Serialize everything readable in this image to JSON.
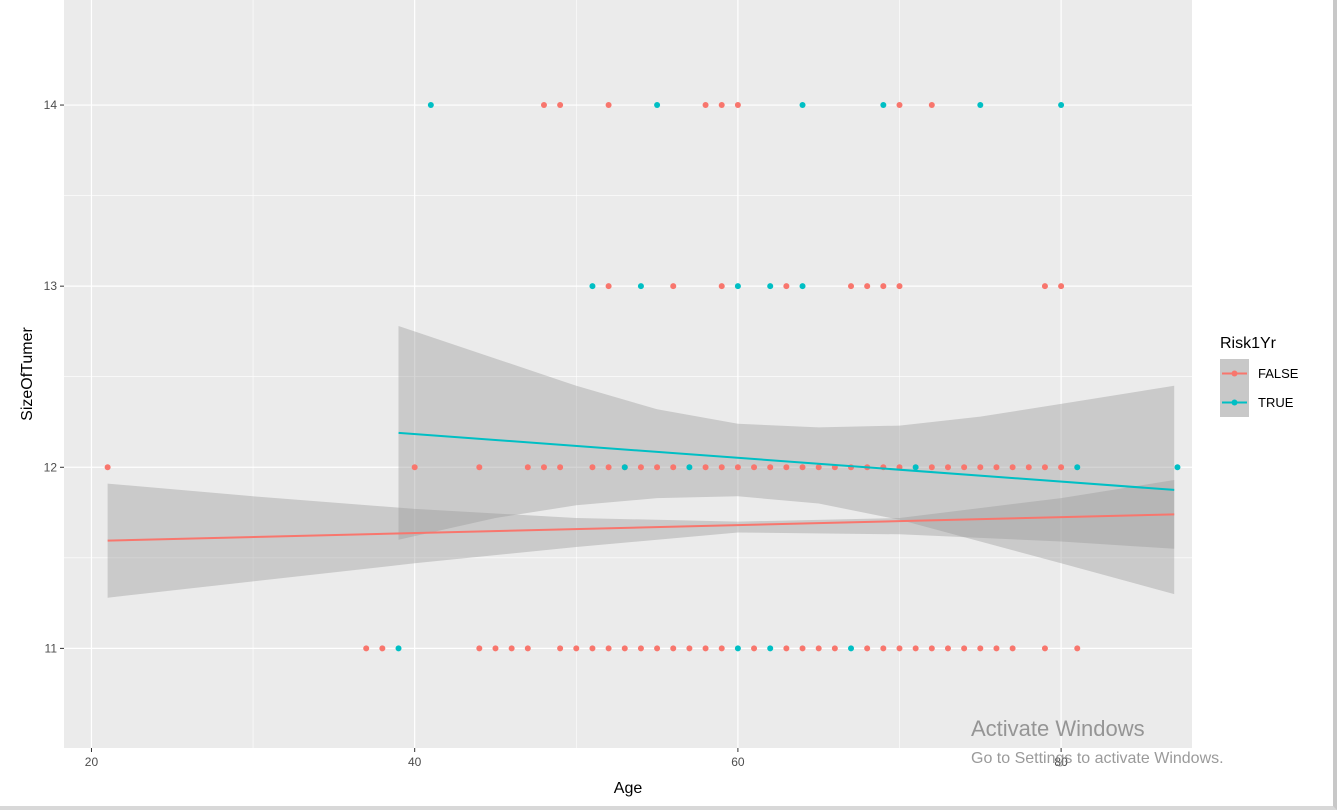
{
  "chart_data": {
    "type": "scatter",
    "xlabel": "Age",
    "ylabel": "SizeOfTumer",
    "xlim": [
      18.3,
      88.1
    ],
    "ylim": [
      10.45,
      14.58
    ],
    "x_ticks": [
      20,
      40,
      60,
      80
    ],
    "y_ticks": [
      11,
      12,
      13,
      14
    ],
    "grid": true,
    "legend": {
      "title": "Risk1Yr",
      "position": "right",
      "entries": [
        "FALSE",
        "TRUE"
      ]
    },
    "series": [
      {
        "name": "FALSE",
        "color": "#F8766D",
        "points": [
          [
            48,
            14
          ],
          [
            49,
            14
          ],
          [
            52,
            14
          ],
          [
            58,
            14
          ],
          [
            59,
            14
          ],
          [
            60,
            14
          ],
          [
            70,
            14
          ],
          [
            72,
            14
          ],
          [
            52,
            13
          ],
          [
            56,
            13
          ],
          [
            59,
            13
          ],
          [
            63,
            13
          ],
          [
            67,
            13
          ],
          [
            68,
            13
          ],
          [
            69,
            13
          ],
          [
            70,
            13
          ],
          [
            79,
            13
          ],
          [
            80,
            13
          ],
          [
            21,
            12
          ],
          [
            40,
            12
          ],
          [
            44,
            12
          ],
          [
            47,
            12
          ],
          [
            48,
            12
          ],
          [
            49,
            12
          ],
          [
            51,
            12
          ],
          [
            52,
            12
          ],
          [
            53,
            12
          ],
          [
            54,
            12
          ],
          [
            55,
            12
          ],
          [
            56,
            12
          ],
          [
            58,
            12
          ],
          [
            59,
            12
          ],
          [
            60,
            12
          ],
          [
            61,
            12
          ],
          [
            62,
            12
          ],
          [
            63,
            12
          ],
          [
            64,
            12
          ],
          [
            65,
            12
          ],
          [
            66,
            12
          ],
          [
            67,
            12
          ],
          [
            68,
            12
          ],
          [
            69,
            12
          ],
          [
            70,
            12
          ],
          [
            72,
            12
          ],
          [
            73,
            12
          ],
          [
            74,
            12
          ],
          [
            75,
            12
          ],
          [
            76,
            12
          ],
          [
            77,
            12
          ],
          [
            78,
            12
          ],
          [
            79,
            12
          ],
          [
            80,
            12
          ],
          [
            37,
            11
          ],
          [
            38,
            11
          ],
          [
            44,
            11
          ],
          [
            45,
            11
          ],
          [
            46,
            11
          ],
          [
            47,
            11
          ],
          [
            49,
            11
          ],
          [
            50,
            11
          ],
          [
            51,
            11
          ],
          [
            52,
            11
          ],
          [
            53,
            11
          ],
          [
            54,
            11
          ],
          [
            55,
            11
          ],
          [
            56,
            11
          ],
          [
            57,
            11
          ],
          [
            58,
            11
          ],
          [
            59,
            11
          ],
          [
            61,
            11
          ],
          [
            63,
            11
          ],
          [
            64,
            11
          ],
          [
            65,
            11
          ],
          [
            66,
            11
          ],
          [
            68,
            11
          ],
          [
            69,
            11
          ],
          [
            70,
            11
          ],
          [
            71,
            11
          ],
          [
            72,
            11
          ],
          [
            73,
            11
          ],
          [
            74,
            11
          ],
          [
            75,
            11
          ],
          [
            76,
            11
          ],
          [
            77,
            11
          ],
          [
            79,
            11
          ],
          [
            81,
            11
          ]
        ],
        "fit": {
          "x": [
            21,
            87
          ],
          "y": [
            11.595,
            11.74
          ]
        },
        "ci_band": {
          "x": [
            21,
            30,
            40,
            50,
            60,
            70,
            80,
            87
          ],
          "upper": [
            11.91,
            11.84,
            11.77,
            11.72,
            11.7,
            11.72,
            11.83,
            11.93
          ],
          "lower": [
            11.28,
            11.37,
            11.47,
            11.56,
            11.64,
            11.63,
            11.59,
            11.55
          ]
        }
      },
      {
        "name": "TRUE",
        "color": "#00BFC4",
        "points": [
          [
            41,
            14
          ],
          [
            55,
            14
          ],
          [
            64,
            14
          ],
          [
            69,
            14
          ],
          [
            75,
            14
          ],
          [
            80,
            14
          ],
          [
            51,
            13
          ],
          [
            54,
            13
          ],
          [
            60,
            13
          ],
          [
            62,
            13
          ],
          [
            64,
            13
          ],
          [
            53,
            12
          ],
          [
            57,
            12
          ],
          [
            71,
            12
          ],
          [
            81,
            12
          ],
          [
            87.2,
            12
          ],
          [
            39,
            11
          ],
          [
            60,
            11
          ],
          [
            62,
            11
          ],
          [
            67,
            11
          ]
        ],
        "fit": {
          "x": [
            39,
            87
          ],
          "y": [
            12.19,
            11.875
          ]
        },
        "ci_band": {
          "x": [
            39,
            45,
            50,
            55,
            60,
            65,
            70,
            75,
            80,
            87
          ],
          "upper": [
            12.78,
            12.6,
            12.45,
            12.32,
            12.24,
            12.22,
            12.23,
            12.28,
            12.35,
            12.45
          ],
          "lower": [
            11.6,
            11.72,
            11.79,
            11.83,
            11.84,
            11.8,
            11.71,
            11.59,
            11.47,
            11.3
          ]
        }
      }
    ]
  },
  "watermark": {
    "title": "Activate Windows",
    "subtitle": "Go to Settings to activate Windows."
  }
}
